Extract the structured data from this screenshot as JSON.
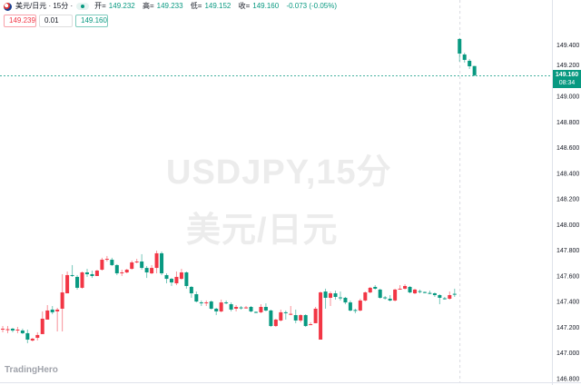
{
  "header": {
    "symbol": "美元/日元 · 15分 ·",
    "open_label": "开=",
    "open": "149.232",
    "high_label": "高=",
    "high": "149.233",
    "low_label": "低=",
    "low": "149.152",
    "close_label": "收=",
    "close": "149.160",
    "change": "-0.073 (-0.05%)",
    "market_status_icon": "green-dot-icon"
  },
  "trade": {
    "sell_price": "149.239",
    "quantity": "0.01",
    "buy_price": "149.160"
  },
  "watermark": {
    "line1": "USDJPY,15分",
    "line2": "美元/日元"
  },
  "logo": "TradingHero",
  "price_tag": {
    "price": "149.160",
    "countdown": "08:34"
  },
  "colors": {
    "up": "#f23645",
    "down": "#089981",
    "accent": "#089981"
  },
  "chart_data": {
    "type": "candlestick",
    "title": "USDJPY,15分",
    "up_color": "#f23645",
    "down_color": "#089981",
    "ylim": [
      146.8,
      149.5
    ],
    "y_ticks": [
      "149.400",
      "149.200",
      "149.000",
      "148.800",
      "148.600",
      "148.400",
      "148.200",
      "148.000",
      "147.800",
      "147.600",
      "147.400",
      "147.200",
      "147.000",
      "146.800"
    ],
    "grid": false,
    "last_price": 149.16,
    "candles": [
      [
        147.177,
        147.205,
        147.156,
        147.184
      ],
      [
        147.177,
        147.205,
        147.149,
        147.18
      ],
      [
        147.184,
        147.191,
        147.156,
        147.17
      ],
      [
        147.17,
        147.198,
        147.149,
        147.177
      ],
      [
        147.17,
        147.184,
        147.142,
        147.149
      ],
      [
        147.149,
        147.177,
        147.071,
        147.099
      ],
      [
        147.092,
        147.113,
        147.085,
        147.106
      ],
      [
        147.113,
        147.156,
        147.092,
        147.135
      ],
      [
        147.142,
        147.319,
        147.142,
        147.262
      ],
      [
        147.255,
        147.368,
        147.255,
        147.326
      ],
      [
        147.333,
        147.361,
        147.297,
        147.312
      ],
      [
        147.319,
        147.347,
        147.163,
        147.333
      ],
      [
        147.34,
        147.609,
        147.163,
        147.467
      ],
      [
        147.46,
        147.63,
        147.46,
        147.602
      ],
      [
        147.602,
        147.68,
        147.588,
        147.595
      ],
      [
        147.588,
        147.602,
        147.489,
        147.503
      ],
      [
        147.503,
        147.63,
        147.496,
        147.623
      ],
      [
        147.623,
        147.651,
        147.588,
        147.609
      ],
      [
        147.609,
        147.637,
        147.58,
        147.595
      ],
      [
        147.595,
        147.644,
        147.595,
        147.637
      ],
      [
        147.644,
        147.737,
        147.637,
        147.722
      ],
      [
        147.722,
        147.751,
        147.708,
        147.729
      ],
      [
        147.722,
        147.737,
        147.673,
        147.68
      ],
      [
        147.68,
        147.687,
        147.602,
        147.616
      ],
      [
        147.616,
        147.644,
        147.595,
        147.623
      ],
      [
        147.623,
        147.651,
        147.616,
        147.644
      ],
      [
        147.651,
        147.715,
        147.644,
        147.701
      ],
      [
        147.701,
        147.729,
        147.694,
        147.708
      ],
      [
        147.708,
        147.765,
        147.644,
        147.658
      ],
      [
        147.658,
        147.673,
        147.58,
        147.623
      ],
      [
        147.616,
        147.68,
        147.609,
        147.658
      ],
      [
        147.658,
        147.793,
        147.616,
        147.772
      ],
      [
        147.772,
        147.786,
        147.602,
        147.616
      ],
      [
        147.602,
        147.616,
        147.538,
        147.573
      ],
      [
        147.573,
        147.58,
        147.517,
        147.545
      ],
      [
        147.538,
        147.63,
        147.524,
        147.588
      ],
      [
        147.573,
        147.651,
        147.566,
        147.623
      ],
      [
        147.623,
        147.63,
        147.496,
        147.517
      ],
      [
        147.51,
        147.517,
        147.425,
        147.46
      ],
      [
        147.453,
        147.474,
        147.389,
        147.396
      ],
      [
        147.389,
        147.404,
        147.361,
        147.382
      ],
      [
        147.382,
        147.404,
        147.361,
        147.389
      ],
      [
        147.396,
        147.404,
        147.333,
        147.34
      ],
      [
        147.34,
        147.347,
        147.29,
        147.319
      ],
      [
        147.319,
        147.411,
        147.312,
        147.389
      ],
      [
        147.389,
        147.404,
        147.375,
        147.382
      ],
      [
        147.375,
        147.389,
        147.319,
        147.333
      ],
      [
        147.34,
        147.368,
        147.319,
        147.354
      ],
      [
        147.35,
        147.361,
        147.333,
        147.347
      ],
      [
        147.347,
        147.361,
        147.34,
        147.35
      ],
      [
        147.354,
        147.361,
        147.312,
        147.319
      ],
      [
        147.315,
        147.319,
        147.305,
        147.312
      ],
      [
        147.312,
        147.375,
        147.305,
        147.354
      ],
      [
        147.354,
        147.382,
        147.319,
        147.326
      ],
      [
        147.326,
        147.333,
        147.198,
        147.205
      ],
      [
        147.205,
        147.262,
        147.198,
        147.255
      ],
      [
        147.248,
        147.333,
        147.241,
        147.312
      ],
      [
        147.312,
        147.326,
        147.255,
        147.305
      ],
      [
        147.297,
        147.361,
        147.29,
        147.3
      ],
      [
        147.29,
        147.333,
        147.227,
        147.248
      ],
      [
        147.248,
        147.297,
        147.234,
        147.29
      ],
      [
        147.29,
        147.297,
        147.198,
        147.205
      ],
      [
        147.217,
        147.234,
        147.212,
        147.219
      ],
      [
        147.227,
        147.354,
        147.227,
        147.34
      ],
      [
        147.099,
        147.474,
        147.099,
        147.467
      ],
      [
        147.474,
        147.496,
        147.34,
        147.425
      ],
      [
        147.425,
        147.474,
        147.361,
        147.46
      ],
      [
        147.46,
        147.481,
        147.411,
        147.432
      ],
      [
        147.428,
        147.474,
        147.404,
        147.425
      ],
      [
        147.425,
        147.432,
        147.375,
        147.389
      ],
      [
        147.389,
        147.404,
        147.319,
        147.326
      ],
      [
        147.33,
        147.34,
        147.305,
        147.326
      ],
      [
        147.326,
        147.418,
        147.319,
        147.404
      ],
      [
        147.404,
        147.474,
        147.397,
        147.467
      ],
      [
        147.467,
        147.51,
        147.46,
        147.503
      ],
      [
        147.51,
        147.524,
        147.489,
        147.496
      ],
      [
        147.489,
        147.496,
        147.418,
        147.425
      ],
      [
        147.428,
        147.439,
        147.411,
        147.425
      ],
      [
        147.418,
        147.446,
        147.397,
        147.404
      ],
      [
        147.404,
        147.496,
        147.397,
        147.489
      ],
      [
        147.492,
        147.524,
        147.489,
        147.496
      ],
      [
        147.496,
        147.531,
        147.489,
        147.517
      ],
      [
        147.51,
        147.517,
        147.46,
        147.467
      ],
      [
        147.46,
        147.496,
        147.453,
        147.489
      ],
      [
        147.477,
        147.489,
        147.46,
        147.474
      ],
      [
        147.47,
        147.474,
        147.46,
        147.467
      ],
      [
        147.463,
        147.481,
        147.453,
        147.46
      ],
      [
        147.46,
        147.467,
        147.432,
        147.446
      ],
      [
        147.446,
        147.453,
        147.375,
        147.425
      ],
      [
        147.421,
        147.432,
        147.411,
        147.418
      ],
      [
        147.418,
        147.474,
        147.411,
        147.446
      ],
      [
        147.456,
        147.496,
        147.432,
        147.453
      ],
      [
        149.443,
        149.45,
        149.266,
        149.329
      ],
      [
        149.322,
        149.336,
        149.259,
        149.28
      ],
      [
        149.273,
        149.287,
        149.209,
        149.23
      ],
      [
        149.232,
        149.233,
        149.152,
        149.16
      ]
    ]
  }
}
